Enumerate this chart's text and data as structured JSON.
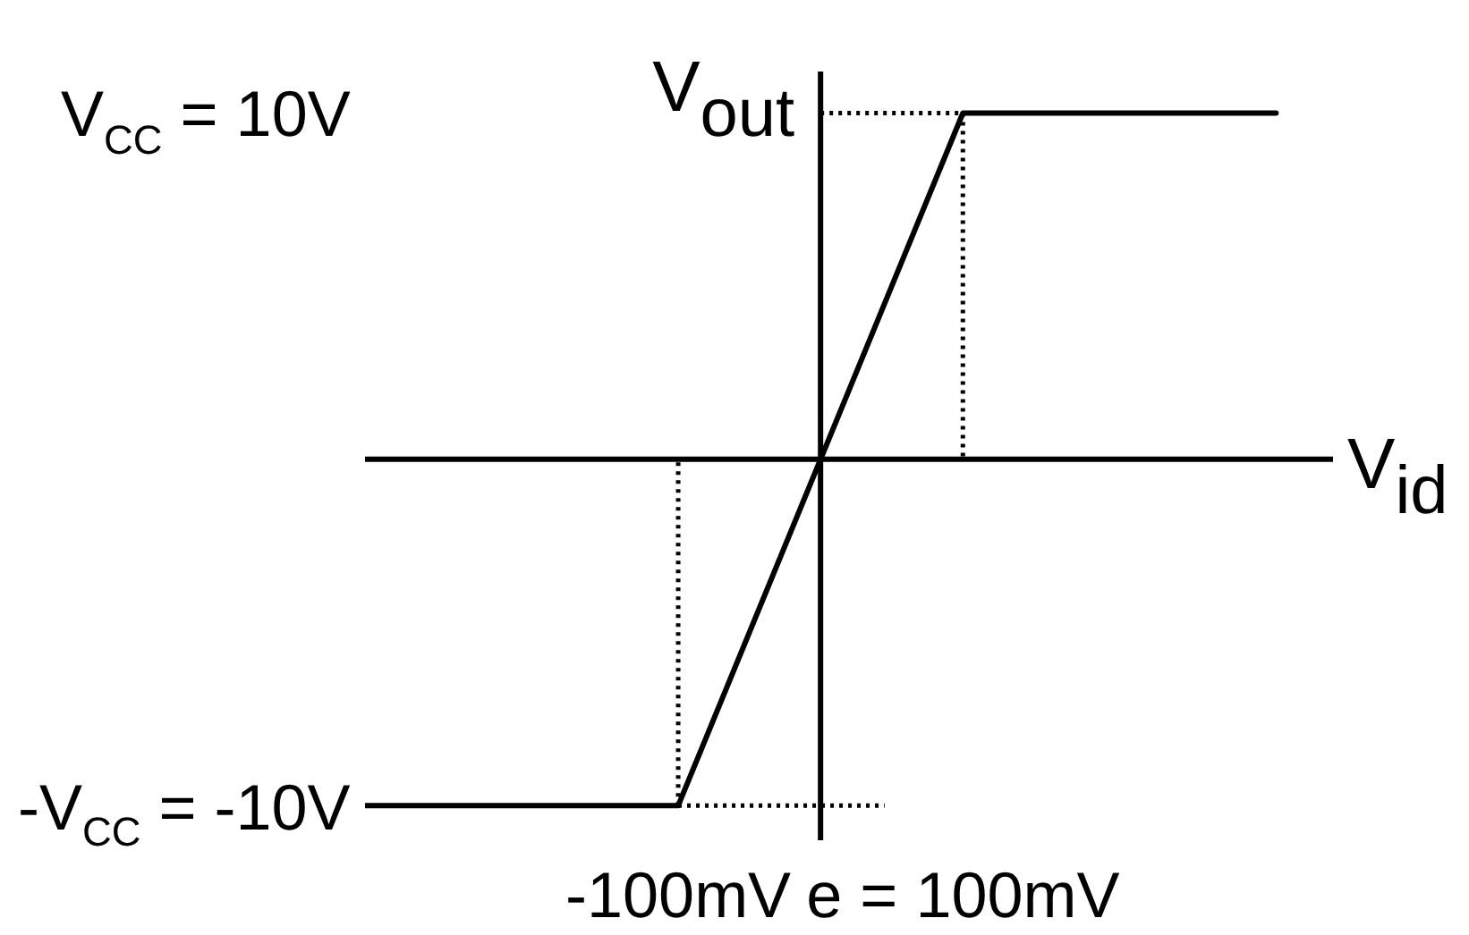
{
  "chart_data": {
    "type": "line",
    "xlabel": "V$_{id}$",
    "ylabel": "V$_{out}$",
    "xlim": [
      -320,
      360
    ],
    "ylim": [
      -11,
      11.2
    ],
    "xticks": [
      {
        "value": -100,
        "label": "-100mV"
      },
      {
        "value": 100,
        "label": "e = 100mV"
      }
    ],
    "yticks": [
      {
        "value": -10,
        "label": "-V$_{CC}$ = -10V"
      },
      {
        "value": 10,
        "label": "V$_{CC}$ = 10V"
      }
    ],
    "series": [
      {
        "x": [
          -320,
          -100,
          100,
          320
        ],
        "values": [
          -10,
          -10,
          10,
          10
        ],
        "color": "#000000",
        "line_style": "solid"
      },
      {
        "x": [
          0,
          150
        ],
        "values": [
          10,
          10
        ],
        "color": "#000000",
        "line_style": "dotted"
      },
      {
        "x": [
          100,
          100
        ],
        "values": [
          10,
          0
        ],
        "color": "#000000",
        "line_style": "dotted"
      },
      {
        "x": [
          -100,
          -100
        ],
        "values": [
          -10,
          0
        ],
        "color": "#000000",
        "line_style": "dotted"
      },
      {
        "x": [
          -100,
          45
        ],
        "values": [
          -10,
          -10
        ],
        "color": "#000000",
        "line_style": "dotted"
      }
    ],
    "marker": "none",
    "grid": false,
    "legend": false
  }
}
